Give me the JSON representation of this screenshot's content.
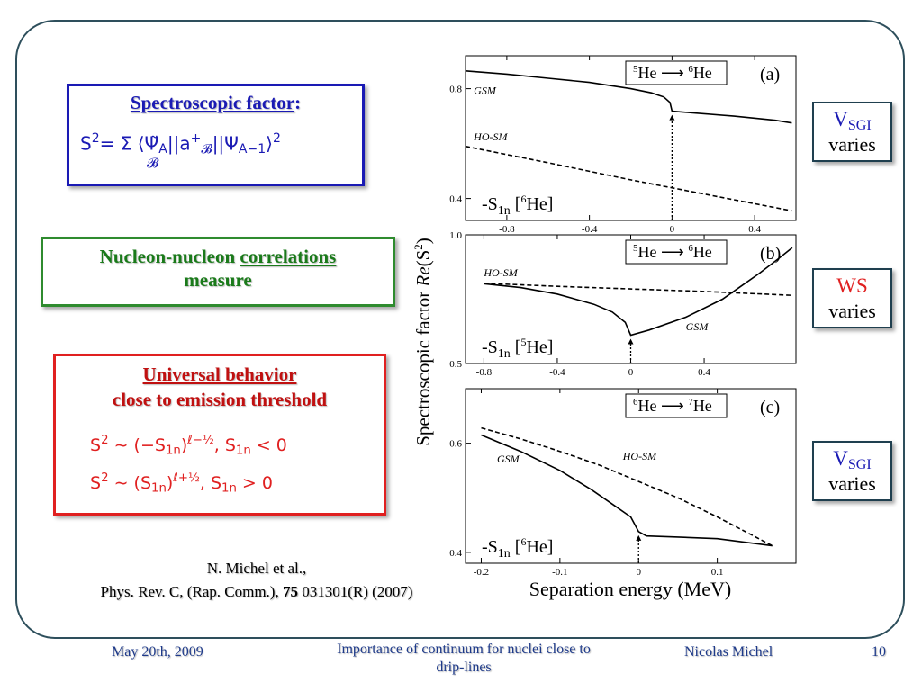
{
  "spectroscopic": {
    "title": "Spectroscopic factor",
    "colon": ":",
    "formula_lhs": "S",
    "formula_lhs_sup": "2",
    "formula_rhs": "= Σ ⟨Ψ̃",
    "formula_sum_sub": "𝓑",
    "formula_mid": "||a",
    "formula_dagger": "+",
    "formula_mid_sub": "𝓑",
    "formula_end": "||Ψ",
    "formula_end_sub": "A−1",
    "formula_close": "⟩",
    "formula_close_sup": "2",
    "formula_A": "A"
  },
  "nucleon": {
    "line1_a": "Nucleon-nucleon",
    "line1_b": "correlations",
    "line2": "measure"
  },
  "universal": {
    "title": "Universal behavior",
    "subtitle": "close to emission threshold",
    "formula1_a": "S",
    "formula1_sup": "2",
    "formula1_b": " ∼ (−S",
    "formula1_sub": "1n",
    "formula1_c": ")",
    "formula1_exp": "ℓ−½",
    "formula1_d": ", S",
    "formula1_sub2": "1n",
    "formula1_e": " < 0",
    "formula2_a": "S",
    "formula2_sup": "2",
    "formula2_b": " ∼ (S",
    "formula2_sub": "1n",
    "formula2_c": ")",
    "formula2_exp": "ℓ+½",
    "formula2_d": ", S",
    "formula2_sub2": "1n",
    "formula2_e": " > 0"
  },
  "reference": {
    "line1": "N. Michel et al.,",
    "line2_a": "Phys. Rev. C, (Rap. Comm.), ",
    "line2_bold": "75",
    "line2_b": " 031301(R) (2007)"
  },
  "side_boxes": [
    {
      "main": "V",
      "sub": "SGI",
      "bottom": "varies",
      "color": "#1a1ab4"
    },
    {
      "main": "WS",
      "sub": "",
      "bottom": "varies",
      "color": "#e02020"
    },
    {
      "main": "V",
      "sub": "SGI",
      "bottom": "varies",
      "color": "#1a1ab4"
    }
  ],
  "footer": {
    "date": "May 20th, 2009",
    "title_line1": "Importance of continuum for nuclei close to",
    "title_line2": "drip-lines",
    "author": "Nicolas Michel",
    "page": "10"
  },
  "chart_data": [
    {
      "type": "line",
      "panel_label": "(a)",
      "reaction_a": "5",
      "reaction_a_el": "He",
      "reaction_b": "6",
      "reaction_b_el": "He",
      "s_label": "-S",
      "s_sub": "1n",
      "s_bracket": "[",
      "s_mass": "6",
      "s_el": "He]",
      "xlim": [
        -1.0,
        0.6
      ],
      "ylim": [
        0.32,
        0.92
      ],
      "xticks": [
        -0.8,
        -0.4,
        0,
        0.4
      ],
      "xtick_labels": [
        "-0.8",
        "-0.4",
        "0",
        "0.4"
      ],
      "yticks": [
        0.4,
        0.8
      ],
      "ytick_labels": [
        "0.4",
        "0.8"
      ],
      "threshold_x": 0,
      "series": [
        {
          "name": "GSM",
          "dash": false,
          "x": [
            -1.0,
            -0.8,
            -0.6,
            -0.4,
            -0.2,
            -0.1,
            -0.04,
            -0.01,
            0.0,
            0.1,
            0.3,
            0.5,
            0.58
          ],
          "y": [
            0.865,
            0.853,
            0.838,
            0.823,
            0.8,
            0.785,
            0.77,
            0.75,
            0.718,
            0.712,
            0.7,
            0.685,
            0.675
          ]
        },
        {
          "name": "HO-SM",
          "dash": true,
          "x": [
            -1.0,
            -0.6,
            -0.2,
            0.2,
            0.58
          ],
          "y": [
            0.59,
            0.53,
            0.468,
            0.41,
            0.355
          ]
        }
      ],
      "series_label_pos": [
        {
          "x": -0.96,
          "y": 0.78
        },
        {
          "x": -0.96,
          "y": 0.612
        }
      ]
    },
    {
      "type": "line",
      "panel_label": "(b)",
      "reaction_a": "5",
      "reaction_a_el": "He",
      "reaction_b": "6",
      "reaction_b_el": "He",
      "s_label": "-S",
      "s_sub": "1n",
      "s_bracket": "[",
      "s_mass": "5",
      "s_el": "He]",
      "xlim": [
        -0.9,
        0.9
      ],
      "ylim": [
        0.5,
        1.0
      ],
      "xticks": [
        -0.8,
        -0.4,
        0,
        0.4
      ],
      "xtick_labels": [
        "-0.8",
        "-0.4",
        "0",
        "0.4"
      ],
      "yticks": [
        0.5,
        1.0
      ],
      "ytick_labels": [
        "0.5",
        "1.0"
      ],
      "threshold_x": 0,
      "series": [
        {
          "name": "GSM",
          "dash": false,
          "x": [
            -0.8,
            -0.6,
            -0.4,
            -0.2,
            -0.1,
            -0.03,
            0.0,
            0.1,
            0.3,
            0.5,
            0.6,
            0.7,
            0.8,
            0.88
          ],
          "y": [
            0.81,
            0.795,
            0.77,
            0.73,
            0.7,
            0.66,
            0.61,
            0.63,
            0.68,
            0.75,
            0.8,
            0.85,
            0.905,
            0.95
          ]
        },
        {
          "name": "HO-SM",
          "dash": true,
          "x": [
            -0.8,
            -0.4,
            0.0,
            0.4,
            0.88
          ],
          "y": [
            0.812,
            0.8,
            0.79,
            0.78,
            0.765
          ]
        }
      ],
      "series_label_pos": [
        {
          "x": 0.3,
          "y": 0.63
        },
        {
          "x": -0.8,
          "y": 0.84
        }
      ]
    },
    {
      "type": "line",
      "panel_label": "(c)",
      "reaction_a": "6",
      "reaction_a_el": "He",
      "reaction_b": "7",
      "reaction_b_el": "He",
      "s_label": "-S",
      "s_sub": "1n",
      "s_bracket": "[",
      "s_mass": "6",
      "s_el": "He]",
      "xlim": [
        -0.22,
        0.2
      ],
      "ylim": [
        0.38,
        0.7
      ],
      "xticks": [
        -0.2,
        -0.1,
        0,
        0.1
      ],
      "xtick_labels": [
        "-0.2",
        "-0.1",
        "0",
        "0.1"
      ],
      "yticks": [
        0.4,
        0.6
      ],
      "ytick_labels": [
        "0.4",
        "0.6"
      ],
      "threshold_x": 0,
      "series": [
        {
          "name": "GSM",
          "dash": false,
          "x": [
            -0.2,
            -0.15,
            -0.1,
            -0.06,
            -0.03,
            -0.01,
            0.0,
            0.01,
            0.05,
            0.1,
            0.17
          ],
          "y": [
            0.615,
            0.585,
            0.55,
            0.515,
            0.485,
            0.465,
            0.438,
            0.43,
            0.428,
            0.425,
            0.412
          ]
        },
        {
          "name": "HO-SM",
          "dash": true,
          "x": [
            -0.2,
            -0.15,
            -0.1,
            -0.05,
            0.0,
            0.05,
            0.1,
            0.17
          ],
          "y": [
            0.628,
            0.608,
            0.585,
            0.56,
            0.53,
            0.5,
            0.465,
            0.412
          ]
        }
      ],
      "series_label_pos": [
        {
          "x": -0.18,
          "y": 0.565
        },
        {
          "x": -0.02,
          "y": 0.57
        }
      ]
    }
  ],
  "chart_axes": {
    "ylabel": "Spectroscopic  factor ",
    "ylabel_italic": "Re",
    "ylabel_tail": "(S",
    "ylabel_sup": "2",
    "ylabel_close": ")",
    "xlabel": "Separation energy (MeV)"
  }
}
